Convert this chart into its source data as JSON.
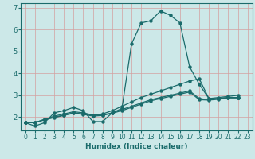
{
  "title": "",
  "xlabel": "Humidex (Indice chaleur)",
  "background_color": "#cce8e8",
  "grid_color_h": "#d4a0a0",
  "grid_color_v": "#d4a0a0",
  "line_color": "#1a6b6b",
  "spine_color": "#1a6b6b",
  "xlim": [
    -0.5,
    23.5
  ],
  "ylim": [
    1.4,
    7.2
  ],
  "yticks": [
    2,
    3,
    4,
    5,
    6,
    7
  ],
  "xticks": [
    0,
    1,
    2,
    3,
    4,
    5,
    6,
    7,
    8,
    9,
    10,
    11,
    12,
    13,
    14,
    15,
    16,
    17,
    18,
    19,
    20,
    21,
    22,
    23
  ],
  "series": [
    {
      "x": [
        0,
        1,
        2,
        3,
        4,
        5,
        6,
        7,
        8,
        9,
        10,
        11,
        12,
        13,
        14,
        15,
        16,
        17,
        18,
        19,
        20,
        21,
        22
      ],
      "y": [
        1.75,
        1.6,
        1.75,
        2.2,
        2.3,
        2.45,
        2.3,
        1.8,
        1.8,
        2.2,
        2.4,
        5.35,
        6.3,
        6.4,
        6.85,
        6.65,
        6.3,
        4.3,
        3.5,
        2.85,
        2.85,
        2.9,
        2.9
      ]
    },
    {
      "x": [
        0,
        1,
        2,
        3,
        4,
        5,
        6,
        7,
        8,
        9,
        10,
        11,
        12,
        13,
        14,
        15,
        16,
        17,
        18,
        19,
        20,
        21,
        22
      ],
      "y": [
        1.75,
        1.75,
        1.9,
        2.05,
        2.15,
        2.25,
        2.2,
        2.1,
        2.15,
        2.3,
        2.5,
        2.7,
        2.9,
        3.05,
        3.2,
        3.35,
        3.5,
        3.65,
        3.75,
        2.85,
        2.9,
        2.95,
        3.0
      ]
    },
    {
      "x": [
        0,
        1,
        2,
        3,
        4,
        5,
        6,
        7,
        8,
        9,
        10,
        11,
        12,
        13,
        14,
        15,
        16,
        17,
        18,
        19,
        20,
        21,
        22
      ],
      "y": [
        1.75,
        1.75,
        1.9,
        2.0,
        2.1,
        2.2,
        2.15,
        2.1,
        2.1,
        2.2,
        2.35,
        2.5,
        2.65,
        2.8,
        2.9,
        3.0,
        3.1,
        3.2,
        2.85,
        2.8,
        2.85,
        2.9,
        2.9
      ]
    },
    {
      "x": [
        0,
        1,
        2,
        3,
        4,
        5,
        6,
        7,
        8,
        9,
        10,
        11,
        12,
        13,
        14,
        15,
        16,
        17,
        18,
        19,
        20,
        21,
        22
      ],
      "y": [
        1.75,
        1.75,
        1.88,
        1.98,
        2.08,
        2.18,
        2.13,
        2.05,
        2.08,
        2.18,
        2.3,
        2.45,
        2.6,
        2.75,
        2.85,
        2.95,
        3.05,
        3.15,
        2.8,
        2.78,
        2.82,
        2.88,
        2.88
      ]
    }
  ],
  "xlabel_fontsize": 6.5,
  "tick_fontsize": 5.5,
  "ytick_fontsize": 6.0,
  "linewidth": 0.9,
  "markersize": 2.2
}
